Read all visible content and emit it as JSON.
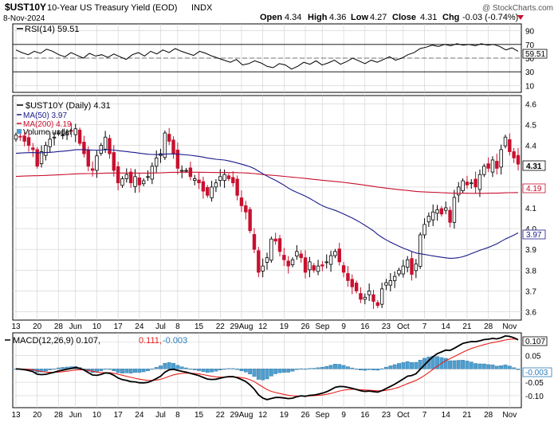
{
  "header": {
    "symbol": "$UST10Y",
    "name": "10-Year US Treasury Yield (EOD)",
    "exchange": "INDX",
    "date": "8-Nov-2024",
    "watermark": "@ StockCharts.com",
    "quote": {
      "open_label": "Open",
      "open": "4.34",
      "high_label": "High",
      "high": "4.36",
      "low_label": "Low",
      "low": "4.27",
      "close_label": "Close",
      "close": "4.31",
      "chg_label": "Chg",
      "chg": "-0.03 (-0.74%)",
      "chg_icon": "triangle-down-icon"
    }
  },
  "colors": {
    "up": "#000000",
    "down": "#c8102e",
    "ma50": "#1a1a8c",
    "ma200": "#c8102e",
    "volume": "#4d9fcf",
    "macd_line": "#000000",
    "signal_line": "#e8201a",
    "rsi_line": "#000000",
    "grid": "#cfcfcf"
  },
  "chart_data": [
    {
      "type": "line",
      "panel": "rsi",
      "legend": "RSI(14) 59.51",
      "last_value_label": "59.51",
      "ylim": [
        0,
        100
      ],
      "y_ticks": [
        10,
        30,
        50,
        70,
        90
      ],
      "y_tick_labels": [
        "10",
        "30",
        "50",
        "70",
        "90"
      ],
      "levels": [
        30,
        70
      ],
      "series": [
        {
          "values": [
            62,
            58,
            55,
            60,
            57,
            63,
            60,
            55,
            52,
            58,
            54,
            50,
            57,
            53,
            55,
            51,
            56,
            52,
            48,
            55,
            58,
            53,
            60,
            56,
            62,
            58,
            64,
            60,
            57,
            54,
            60,
            57,
            53,
            50,
            47,
            44,
            48,
            40,
            42,
            46,
            43,
            38,
            36,
            42,
            40,
            34,
            38,
            44,
            41,
            46,
            40,
            43,
            47,
            41,
            45,
            50,
            46,
            42,
            47,
            44,
            48,
            52,
            47,
            50,
            55,
            58,
            64,
            66,
            69,
            67,
            70,
            68,
            71,
            69,
            70,
            68,
            71,
            69,
            70,
            67,
            62,
            65,
            60
          ]
        }
      ]
    },
    {
      "type": "candlestick",
      "panel": "price",
      "legend": "$UST10Y (Daily) 4.31",
      "ylim": [
        3.56,
        4.64
      ],
      "y_ticks": [
        3.6,
        3.7,
        3.8,
        3.9,
        4.0,
        4.1,
        4.2,
        4.3,
        4.4,
        4.5,
        4.6
      ],
      "y_tick_labels": [
        "3.6",
        "3.7",
        "3.8",
        "3.9",
        "4.0",
        "4.1",
        "4.2",
        "4.3",
        "4.4",
        "4.5",
        "4.6"
      ],
      "x_ticks": [
        "13",
        "20",
        "28",
        "Jun",
        "10",
        "17",
        "24",
        "Jul",
        "8",
        "15",
        "22",
        "29Aug",
        "12",
        "19",
        "26",
        "Sep",
        "9",
        "16",
        "23",
        "Oct",
        "7",
        "14",
        "21",
        "28",
        "Nov"
      ],
      "x_tick_index": [
        0,
        5,
        10,
        14,
        19,
        24,
        29,
        34,
        38,
        43,
        48,
        53,
        58,
        63,
        68,
        72,
        77,
        82,
        87,
        91,
        96,
        101,
        106,
        111,
        116
      ],
      "close": [
        4.45,
        4.44,
        4.42,
        4.4,
        4.38,
        4.3,
        4.37,
        4.4,
        4.43,
        4.44,
        4.46,
        4.45,
        4.46,
        4.47,
        4.48,
        4.41,
        4.36,
        4.3,
        4.28,
        4.35,
        4.4,
        4.44,
        4.36,
        4.28,
        4.22,
        4.24,
        4.26,
        4.22,
        4.25,
        4.21,
        4.23,
        4.25,
        4.3,
        4.34,
        4.36,
        4.46,
        4.42,
        4.36,
        4.29,
        4.28,
        4.28,
        4.25,
        4.24,
        4.22,
        4.18,
        4.16,
        4.2,
        4.22,
        4.25,
        4.26,
        4.24,
        4.22,
        4.16,
        4.11,
        4.08,
        3.99,
        3.9,
        3.79,
        3.82,
        3.86,
        3.95,
        3.94,
        3.89,
        3.85,
        3.82,
        3.85,
        3.89,
        3.86,
        3.79,
        3.84,
        3.8,
        3.82,
        3.82,
        3.84,
        3.87,
        3.89,
        3.84,
        3.79,
        3.75,
        3.72,
        3.7,
        3.66,
        3.67,
        3.7,
        3.65,
        3.63,
        3.71,
        3.74,
        3.75,
        3.77,
        3.8,
        3.82,
        3.85,
        3.78,
        3.83,
        3.97,
        4.02,
        4.06,
        4.08,
        4.09,
        4.07,
        4.1,
        4.03,
        4.15,
        4.2,
        4.23,
        4.21,
        4.22,
        4.2,
        4.26,
        4.3,
        4.29,
        4.33,
        4.29,
        4.38,
        4.44,
        4.37,
        4.34,
        4.31
      ]
    },
    {
      "type": "bar",
      "panel": "macd",
      "legend_macd": "MACD(12,26,9) 0.107,",
      "legend_signal": "0.111,",
      "legend_hist": "-0.003",
      "last_macd_label": "0.107",
      "last_hist_label": "-0.003",
      "ylim": [
        -0.145,
        0.135
      ],
      "y_ticks": [
        -0.1,
        -0.05,
        0.0,
        0.05,
        0.1
      ],
      "y_tick_labels": [
        "-0.10",
        "-0.05",
        "",
        "0.05",
        "0.10"
      ]
    }
  ],
  "overlays": {
    "ma50": {
      "legend": "MA(50) 3.97",
      "last_label": "3.97"
    },
    "ma200": {
      "legend": "MA(200) 4.19",
      "last_label": "4.19"
    },
    "volume": {
      "legend": "Volume undef"
    },
    "close_last_label": "4.31"
  }
}
